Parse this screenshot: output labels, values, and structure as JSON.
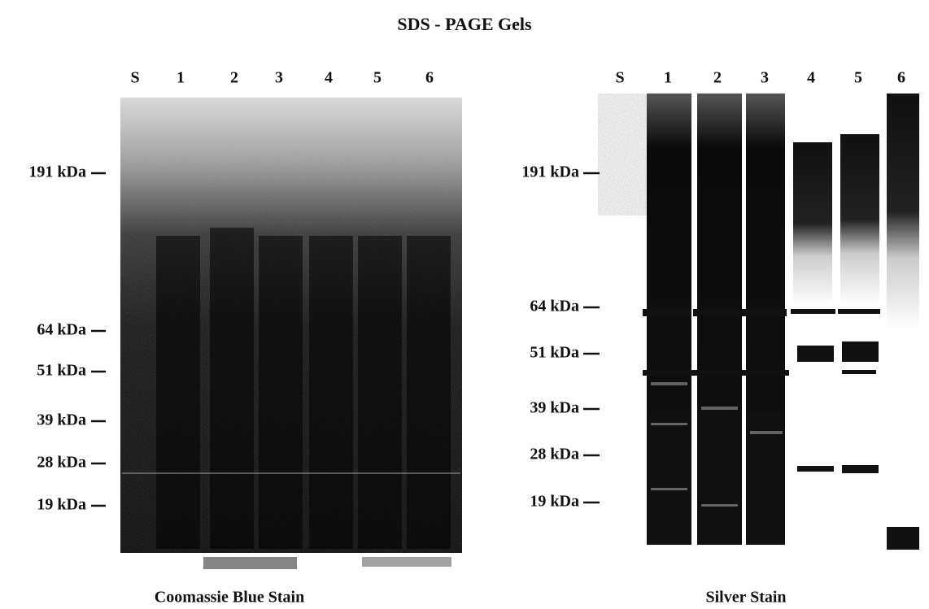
{
  "title": "SDS - PAGE Gels",
  "panels": [
    {
      "caption": "Coomassie Blue Stain",
      "lanes": [
        "S",
        "1",
        "2",
        "3",
        "4",
        "5",
        "6"
      ],
      "markers": [
        "191 kDa",
        "64 kDa",
        "51 kDa",
        "39 kDa",
        "28 kDa",
        "19 kDa"
      ]
    },
    {
      "caption": "Silver Stain",
      "lanes": [
        "S",
        "1",
        "2",
        "3",
        "4",
        "5",
        "6"
      ],
      "markers": [
        "191 kDa",
        "64 kDa",
        "51 kDa",
        "39 kDa",
        "28 kDa",
        "19 kDa"
      ]
    }
  ]
}
